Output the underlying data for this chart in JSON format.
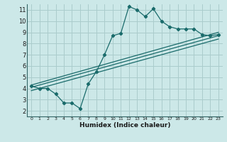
{
  "xlabel": "Humidex (Indice chaleur)",
  "ylabel": "",
  "bg_color": "#cce8e8",
  "grid_color": "#aacccc",
  "line_color": "#1a6b6b",
  "xlim": [
    -0.5,
    23.5
  ],
  "ylim": [
    1.5,
    11.5
  ],
  "xticks": [
    0,
    1,
    2,
    3,
    4,
    5,
    6,
    7,
    8,
    9,
    10,
    11,
    12,
    13,
    14,
    15,
    16,
    17,
    18,
    19,
    20,
    21,
    22,
    23
  ],
  "yticks": [
    2,
    3,
    4,
    5,
    6,
    7,
    8,
    9,
    10,
    11
  ],
  "line1_x": [
    0,
    1,
    2,
    3,
    4,
    5,
    6,
    7,
    8,
    9,
    10,
    11,
    12,
    13,
    14,
    15,
    16,
    17,
    18,
    19,
    20,
    21,
    22,
    23
  ],
  "line1_y": [
    4.2,
    4.0,
    4.0,
    3.5,
    2.7,
    2.7,
    2.2,
    4.4,
    5.5,
    7.0,
    8.7,
    8.9,
    11.3,
    11.0,
    10.4,
    11.1,
    10.0,
    9.5,
    9.3,
    9.3,
    9.3,
    8.8,
    8.7,
    8.8
  ],
  "line2_x": [
    0,
    23
  ],
  "line2_y": [
    4.1,
    8.7
  ],
  "line3_x": [
    0,
    23
  ],
  "line3_y": [
    4.3,
    9.0
  ],
  "line4_x": [
    0,
    23
  ],
  "line4_y": [
    3.8,
    8.4
  ]
}
